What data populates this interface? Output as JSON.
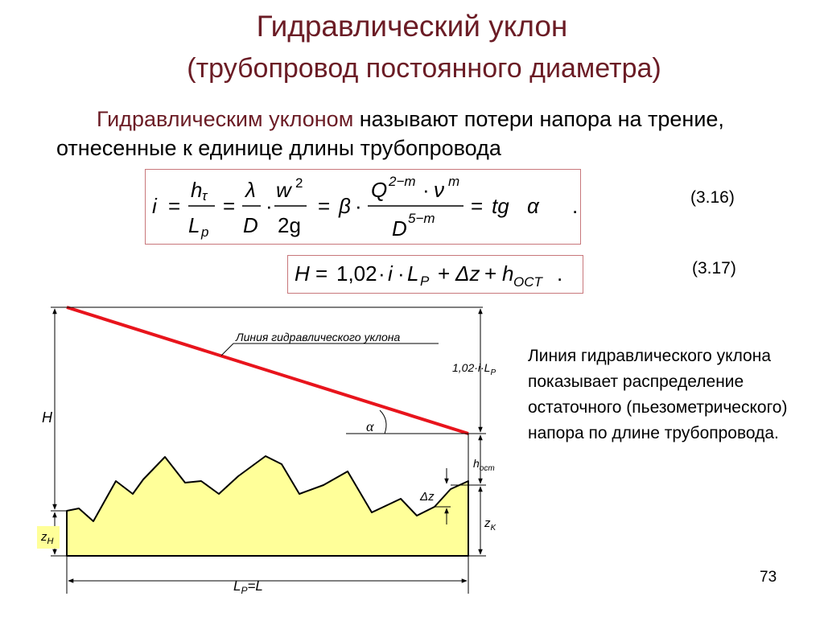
{
  "slide": {
    "title": "Гидравлический уклон",
    "subtitle": "(трубопровод постоянного диаметра)",
    "definition_term": "Гидравлическим уклоном",
    "definition_rest": " называют потери напора на трение, отнесенные к единице длины трубопровода",
    "page_number": "73"
  },
  "equations": {
    "eq1": {
      "number": "(3.16)",
      "i": "i",
      "eq": "=",
      "h": "h",
      "tau": "τ",
      "L": "L",
      "p": "p",
      "lambda": "λ",
      "D": "D",
      "w": "w",
      "sq": "2",
      "two_g": "2g",
      "beta": "β",
      "dot": "·",
      "Q": "Q",
      "q_exp": "2−m",
      "nu": "ν",
      "m": "m",
      "d_exp": "5−m",
      "tg": "tg",
      "alpha": "α",
      "period": "."
    },
    "eq2": {
      "number": "(3.17)",
      "H": "H",
      "eq": "=",
      "coef": "1,02",
      "i": "i",
      "L": "L",
      "P": "P",
      "plus": "+",
      "dz": "Δz",
      "h": "h",
      "ost": "OCT",
      "dot": "·",
      "period": "."
    }
  },
  "diagram": {
    "line_label": "Линия гидравлического уклона",
    "H_label": "H",
    "slope_label_main": "1,02·i·L",
    "slope_label_sub": "P",
    "alpha_label": "α",
    "h_label": "h",
    "h_sub": "ост",
    "dz_label": "Δz",
    "zk_label": "z",
    "zk_sub": "K",
    "zn_label": "z",
    "zn_sub": "H",
    "length_main": "L",
    "length_sub": "P",
    "length_tail": "=L",
    "colors": {
      "hydraulic_line": "#e8141c",
      "terrain_fill": "#ffff99",
      "box_border": "#c8777b",
      "title": "#6b1c25"
    }
  },
  "description": "Линия гидравлического уклона показывает распределение остаточного (пьезометрического) напора по длине трубопровода."
}
